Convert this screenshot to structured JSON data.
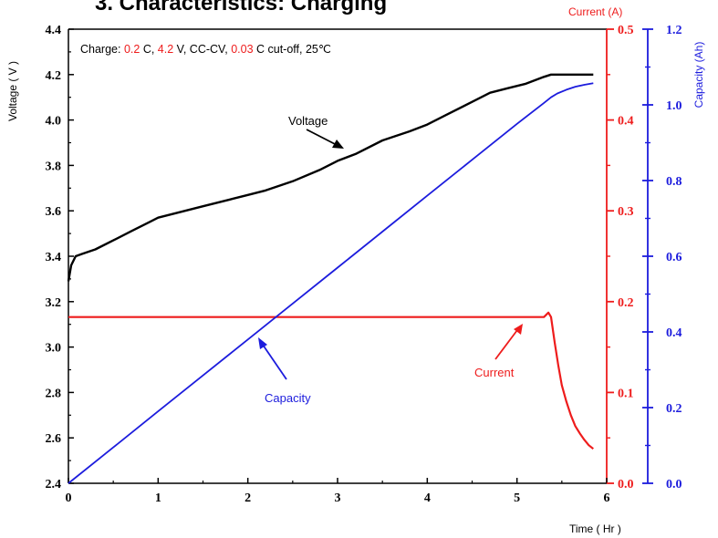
{
  "chart_data": {
    "type": "line",
    "title": "3. Characteristics: Charging",
    "note": {
      "prefix": "Charge: ",
      "c_rate": "0.2",
      "c_unit": " C, ",
      "voltage": "4.2",
      "v_unit": " V, CC-CV, ",
      "cutoff": "0.03",
      "suffix": " C cut-off, 25℃"
    },
    "xlabel": "Time  ( Hr )",
    "ylabel_left": "Voltage  ( V )",
    "ylabel_right1": "Current  (A)",
    "ylabel_right2": "Capacity  (Ah)",
    "xlim": [
      0,
      6
    ],
    "ylim_left": [
      2.4,
      4.4
    ],
    "ylim_right1": [
      0,
      0.5
    ],
    "ylim_right2": [
      0,
      1.2
    ],
    "x_ticks": [
      "0",
      "1",
      "2",
      "3",
      "4",
      "5",
      "6"
    ],
    "y_ticks_left": [
      "2.4",
      "2.6",
      "2.8",
      "3.0",
      "3.2",
      "3.4",
      "3.6",
      "3.8",
      "4.0",
      "4.2",
      "4.4"
    ],
    "y_ticks_right1": [
      "0.0",
      "0.1",
      "0.2",
      "0.3",
      "0.4",
      "0.5"
    ],
    "y_ticks_right2": [
      "0.0",
      "0.2",
      "0.4",
      "0.6",
      "0.8",
      "1.0",
      "1.2"
    ],
    "colors": {
      "voltage": "#000000",
      "current": "#ee1c1c",
      "capacity": "#1c1cdd"
    },
    "series": [
      {
        "name": "Voltage",
        "axis": "left",
        "x": [
          0,
          0.03,
          0.08,
          0.15,
          0.3,
          0.5,
          0.7,
          0.9,
          1.0,
          1.2,
          1.5,
          1.8,
          2.0,
          2.2,
          2.5,
          2.8,
          3.0,
          3.2,
          3.5,
          3.8,
          4.0,
          4.2,
          4.5,
          4.7,
          4.9,
          5.1,
          5.3,
          5.38,
          5.5,
          5.85
        ],
        "y": [
          3.29,
          3.36,
          3.4,
          3.41,
          3.43,
          3.47,
          3.51,
          3.55,
          3.57,
          3.59,
          3.62,
          3.65,
          3.67,
          3.69,
          3.73,
          3.78,
          3.82,
          3.85,
          3.91,
          3.95,
          3.98,
          4.02,
          4.08,
          4.12,
          4.14,
          4.16,
          4.19,
          4.2,
          4.2,
          4.2
        ]
      },
      {
        "name": "Current",
        "axis": "right1",
        "x": [
          0,
          5.3,
          5.35,
          5.38,
          5.42,
          5.46,
          5.5,
          5.55,
          5.6,
          5.65,
          5.7,
          5.75,
          5.8,
          5.85
        ],
        "y": [
          0.183,
          0.183,
          0.188,
          0.183,
          0.155,
          0.13,
          0.108,
          0.09,
          0.075,
          0.063,
          0.055,
          0.048,
          0.042,
          0.038
        ]
      },
      {
        "name": "Capacity",
        "axis": "right2",
        "x": [
          0,
          0.5,
          1,
          1.5,
          2,
          2.5,
          3,
          3.5,
          4,
          4.5,
          5,
          5.3,
          5.38,
          5.45,
          5.55,
          5.65,
          5.75,
          5.85
        ],
        "y": [
          0,
          0.095,
          0.19,
          0.285,
          0.38,
          0.475,
          0.57,
          0.665,
          0.76,
          0.855,
          0.95,
          1.005,
          1.02,
          1.03,
          1.04,
          1.048,
          1.053,
          1.057
        ]
      }
    ],
    "annotations": [
      {
        "text": "Voltage",
        "series": "Voltage"
      },
      {
        "text": "Capacity",
        "series": "Capacity"
      },
      {
        "text": "Current",
        "series": "Current"
      }
    ]
  }
}
